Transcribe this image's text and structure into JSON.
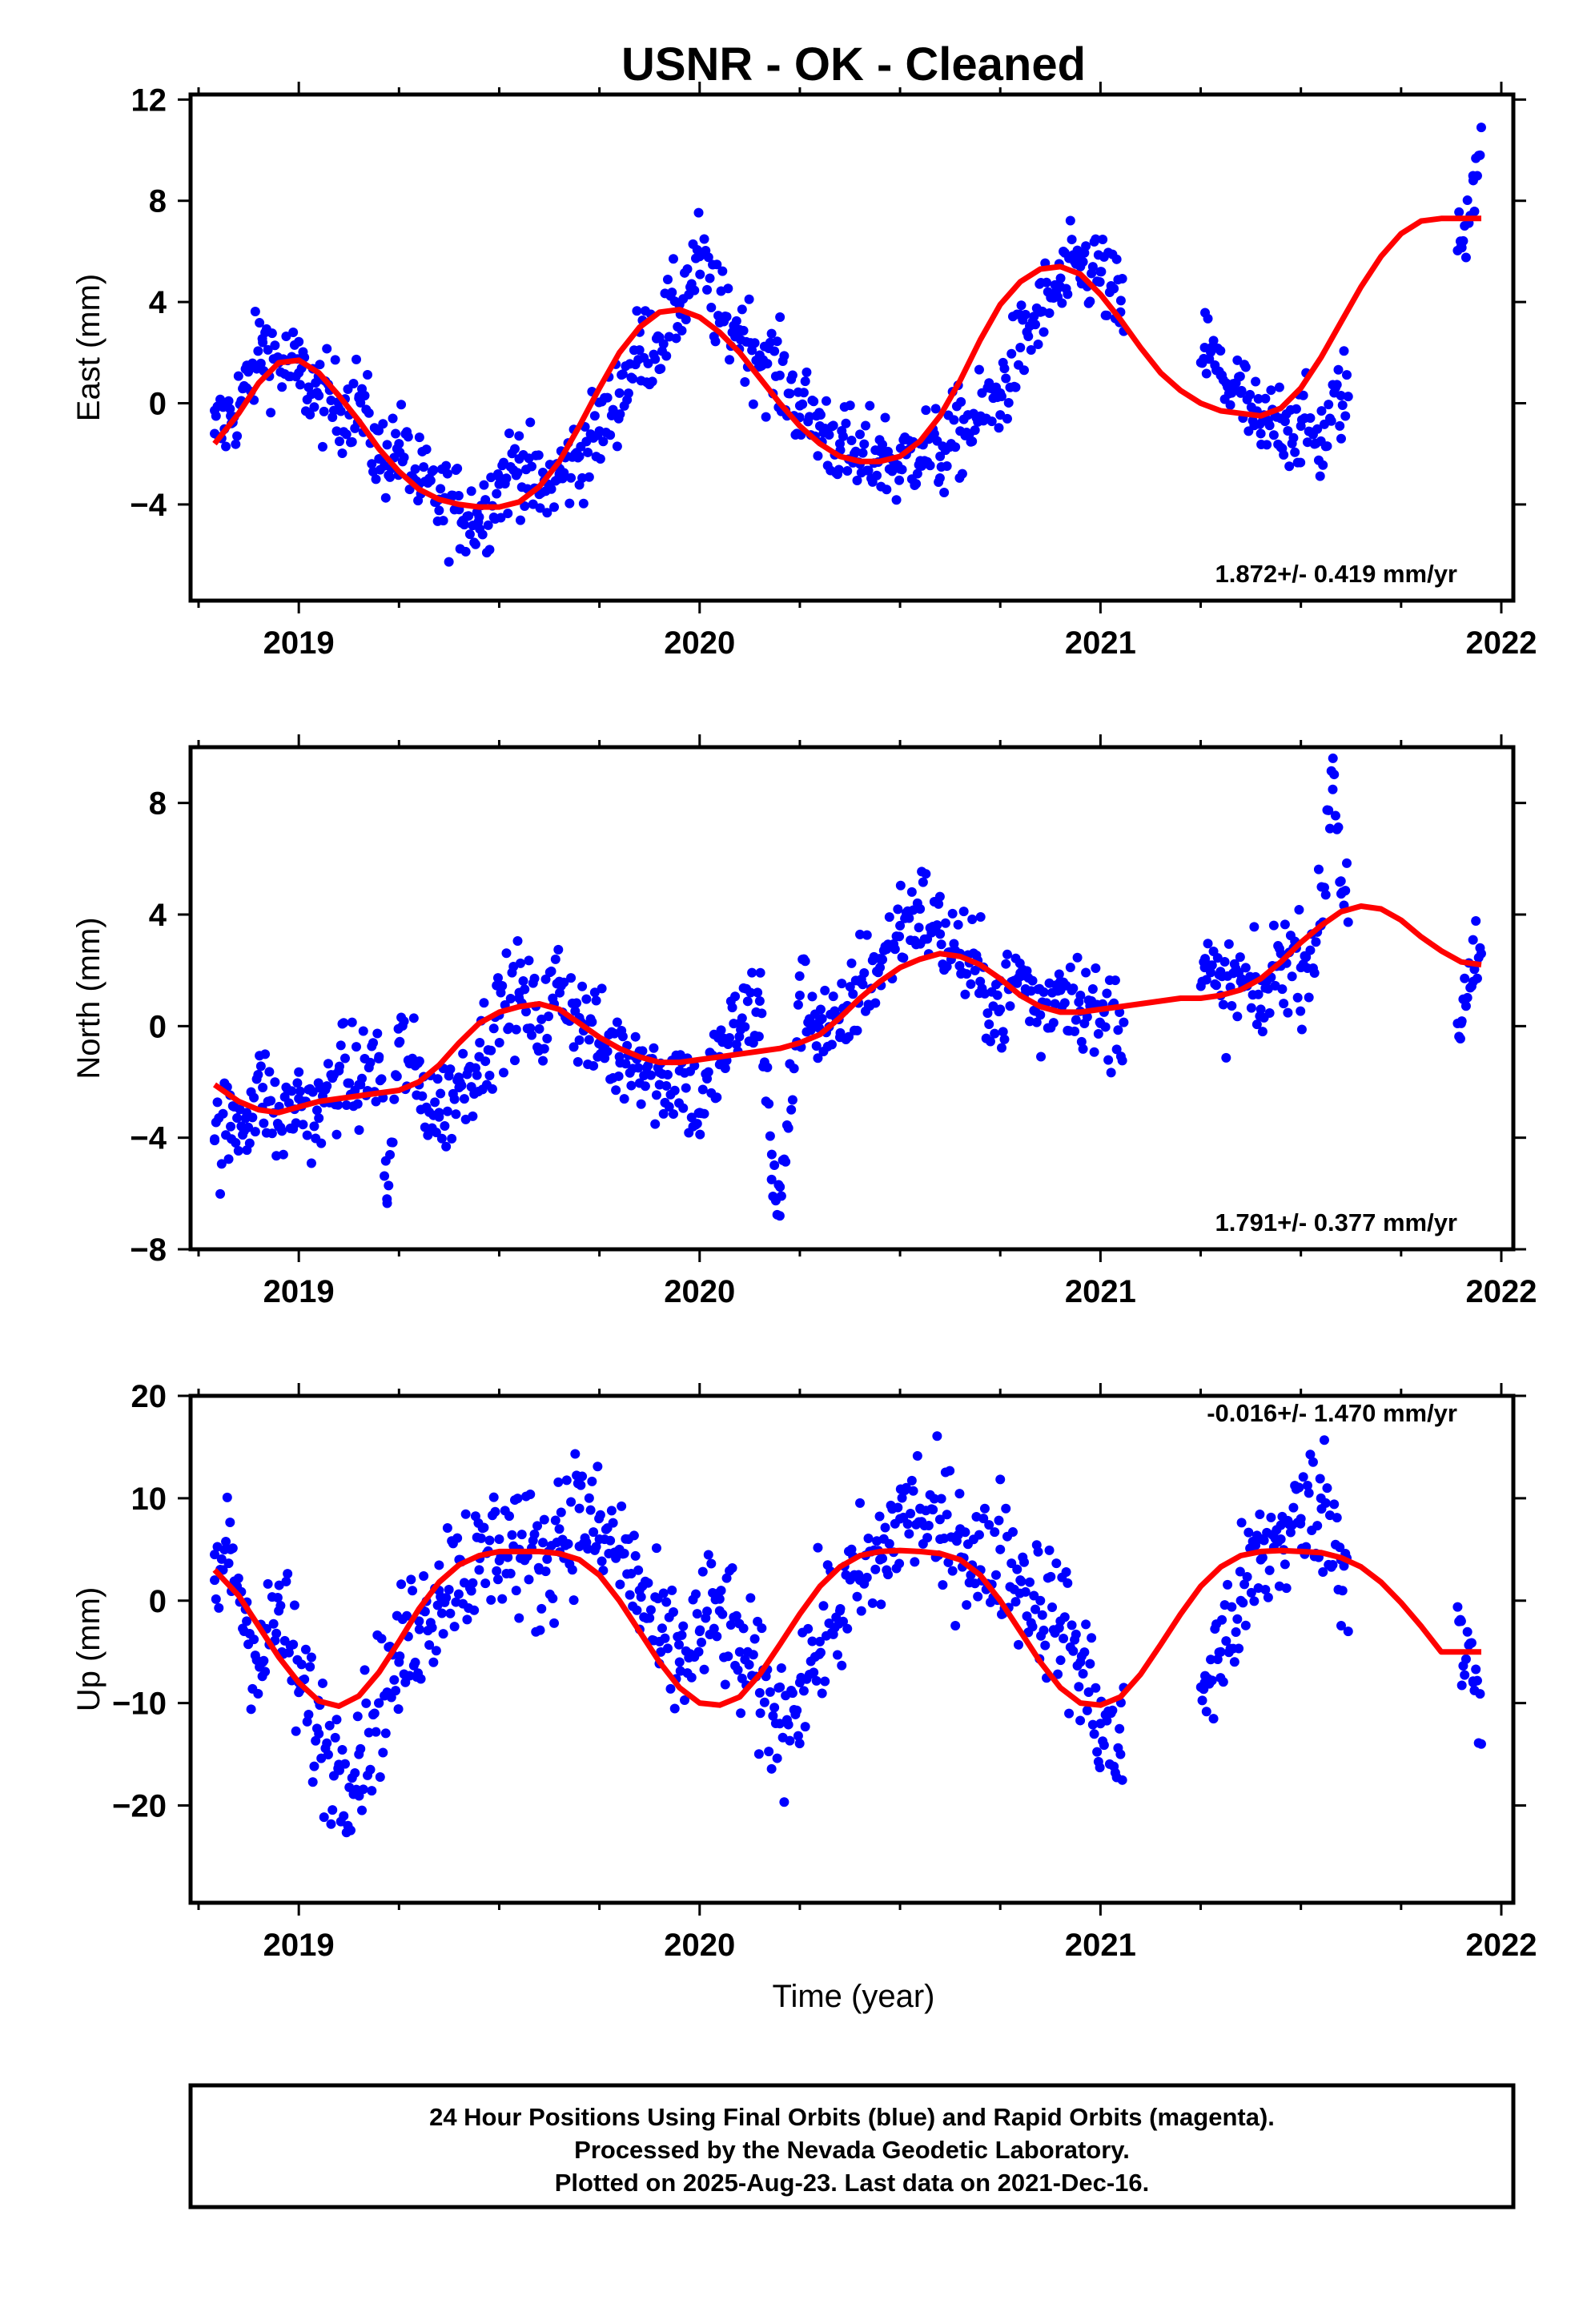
{
  "title": "USNR  - OK - Cleaned",
  "xlabel": "Time (year)",
  "colors": {
    "final_orbits": "#0000ff",
    "model_fit": "#ff0000",
    "axes": "#000000"
  },
  "footer": {
    "line1": "24 Hour Positions Using Final Orbits (blue) and Rapid Orbits (magenta).",
    "line2": "Processed by the Nevada Geodetic Laboratory.",
    "line3": "Plotted on 2025-Aug-23. Last data on 2021-Dec-16."
  },
  "chart_data": [
    {
      "type": "scatter",
      "ylabel": "East (mm)",
      "rate": "1.872+/- 0.419 mm/yr",
      "xlim": [
        2018.73,
        2022.03
      ],
      "ylim": [
        -7.8,
        12.2
      ],
      "x_ticks": [
        "2019",
        "2020",
        "2021",
        "2022"
      ],
      "y_ticks": [
        "−4",
        "0",
        "4",
        "8",
        "12"
      ],
      "series": [
        {
          "marker": "dots",
          "x": [
            2018.79,
            2018.83,
            2018.87,
            2018.91,
            2018.95,
            2019.0,
            2019.05,
            2019.1,
            2019.15,
            2019.2,
            2019.25,
            2019.3,
            2019.35,
            2019.4,
            2019.45,
            2019.5,
            2019.55,
            2019.6,
            2019.65,
            2019.7,
            2019.75,
            2019.8,
            2019.85,
            2019.9,
            2019.95,
            2020.0,
            2020.05,
            2020.1,
            2020.15,
            2020.2,
            2020.25,
            2020.3,
            2020.35,
            2020.4,
            2020.45,
            2020.5,
            2020.55,
            2020.6,
            2020.65,
            2020.7,
            2020.75,
            2020.8,
            2020.85,
            2020.9,
            2020.95,
            2021.0,
            2021.05,
            2021.26,
            2021.3,
            2021.35,
            2021.4,
            2021.45,
            2021.5,
            2021.55,
            2021.6,
            2021.9,
            2021.93,
            2021.95
          ],
          "y": [
            -1.2,
            -0.5,
            0.6,
            2.4,
            1.6,
            1.2,
            0.3,
            -0.2,
            0.2,
            -2.2,
            -1.6,
            -3.2,
            -3.8,
            -4.2,
            -4.5,
            -3.2,
            -2.2,
            -3.6,
            -2.8,
            -2.1,
            -1.1,
            0.4,
            2.1,
            2.6,
            3.9,
            5.8,
            3.4,
            2.9,
            1.9,
            1.1,
            -0.1,
            -0.9,
            -1.6,
            -2.4,
            -1.9,
            -2.6,
            -1.6,
            -2.1,
            -1.1,
            -0.6,
            0.4,
            2.2,
            3.6,
            4.6,
            5.4,
            5.2,
            3.6,
            2.2,
            1.1,
            0.4,
            -1.2,
            -0.6,
            -0.9,
            -1.5,
            0.3,
            6.2,
            8.8,
            10.9
          ]
        },
        {
          "marker": "line",
          "x": [
            2018.79,
            2018.85,
            2018.9,
            2018.95,
            2019.0,
            2019.05,
            2019.1,
            2019.15,
            2019.2,
            2019.25,
            2019.3,
            2019.35,
            2019.4,
            2019.45,
            2019.5,
            2019.55,
            2019.6,
            2019.65,
            2019.7,
            2019.75,
            2019.8,
            2019.85,
            2019.9,
            2019.95,
            2020.0,
            2020.05,
            2020.1,
            2020.15,
            2020.2,
            2020.25,
            2020.3,
            2020.35,
            2020.4,
            2020.45,
            2020.5,
            2020.55,
            2020.6,
            2020.65,
            2020.7,
            2020.75,
            2020.8,
            2020.85,
            2020.9,
            2020.95,
            2021.0,
            2021.05,
            2021.1,
            2021.15,
            2021.2,
            2021.25,
            2021.3,
            2021.35,
            2021.4,
            2021.45,
            2021.5,
            2021.55,
            2021.6,
            2021.65,
            2021.7,
            2021.75,
            2021.8,
            2021.85,
            2021.9,
            2021.95
          ],
          "y": [
            -1.6,
            -0.4,
            0.8,
            1.6,
            1.7,
            1.2,
            0.3,
            -0.7,
            -1.8,
            -2.7,
            -3.4,
            -3.8,
            -4.0,
            -4.1,
            -4.1,
            -3.9,
            -3.3,
            -2.3,
            -0.9,
            0.6,
            2.0,
            3.0,
            3.6,
            3.7,
            3.4,
            2.8,
            2.0,
            1.0,
            0.0,
            -0.9,
            -1.6,
            -2.1,
            -2.3,
            -2.3,
            -2.1,
            -1.5,
            -0.5,
            0.9,
            2.5,
            3.9,
            4.8,
            5.3,
            5.4,
            5.1,
            4.3,
            3.3,
            2.2,
            1.2,
            0.5,
            0.0,
            -0.3,
            -0.4,
            -0.5,
            -0.2,
            0.6,
            1.8,
            3.2,
            4.6,
            5.8,
            6.7,
            7.2,
            7.3,
            7.3,
            7.3
          ]
        }
      ]
    },
    {
      "type": "scatter",
      "ylabel": "North (mm)",
      "rate": "1.791+/- 0.377 mm/yr",
      "xlim": [
        2018.73,
        2022.03
      ],
      "ylim": [
        -8.0,
        10.0
      ],
      "x_ticks": [
        "2019",
        "2020",
        "2021",
        "2022"
      ],
      "y_ticks": [
        "−8",
        "−4",
        "0",
        "4",
        "8"
      ],
      "series": [
        {
          "marker": "dots",
          "x": [
            2018.79,
            2018.83,
            2018.87,
            2018.91,
            2018.95,
            2019.0,
            2019.05,
            2019.1,
            2019.15,
            2019.2,
            2019.22,
            2019.25,
            2019.3,
            2019.35,
            2019.4,
            2019.45,
            2019.5,
            2019.55,
            2019.6,
            2019.65,
            2019.7,
            2019.75,
            2019.8,
            2019.85,
            2019.9,
            2019.95,
            2020.0,
            2020.05,
            2020.1,
            2020.15,
            2020.18,
            2020.2,
            2020.25,
            2020.3,
            2020.35,
            2020.4,
            2020.45,
            2020.5,
            2020.55,
            2020.6,
            2020.65,
            2020.7,
            2020.75,
            2020.8,
            2020.85,
            2020.9,
            2020.95,
            2021.0,
            2021.26,
            2021.3,
            2021.35,
            2021.4,
            2021.45,
            2021.5,
            2021.55,
            2021.58,
            2021.6,
            2021.9,
            2021.93,
            2021.95
          ],
          "y": [
            -4.1,
            -3.6,
            -3.1,
            -2.2,
            -3.6,
            -2.6,
            -3.3,
            -1.6,
            -2.1,
            -1.1,
            -6.2,
            -0.6,
            -2.1,
            -3.1,
            -2.2,
            -1.1,
            0.4,
            1.2,
            -0.1,
            1.6,
            0.3,
            -0.6,
            -1.1,
            -0.9,
            -2.1,
            -1.6,
            -3.1,
            -1.1,
            0.1,
            0.9,
            -4.6,
            -6.8,
            1.1,
            0.2,
            -0.4,
            1.6,
            2.1,
            3.6,
            4.2,
            3.3,
            2.6,
            1.6,
            0.6,
            1.9,
            0.4,
            1.6,
            1.1,
            0.1,
            2.1,
            1.1,
            1.6,
            0.6,
            2.6,
            2.1,
            3.6,
            9.6,
            5.2,
            0.1,
            1.6,
            2.6
          ]
        },
        {
          "marker": "line",
          "x": [
            2018.79,
            2018.85,
            2018.9,
            2018.95,
            2019.0,
            2019.05,
            2019.1,
            2019.15,
            2019.2,
            2019.25,
            2019.3,
            2019.35,
            2019.4,
            2019.45,
            2019.5,
            2019.55,
            2019.6,
            2019.65,
            2019.7,
            2019.75,
            2019.8,
            2019.85,
            2019.9,
            2019.95,
            2020.0,
            2020.05,
            2020.1,
            2020.15,
            2020.2,
            2020.25,
            2020.3,
            2020.35,
            2020.4,
            2020.45,
            2020.5,
            2020.55,
            2020.6,
            2020.65,
            2020.7,
            2020.75,
            2020.8,
            2020.85,
            2020.9,
            2020.95,
            2021.0,
            2021.05,
            2021.1,
            2021.15,
            2021.2,
            2021.25,
            2021.3,
            2021.35,
            2021.4,
            2021.45,
            2021.5,
            2021.55,
            2021.6,
            2021.65,
            2021.7,
            2021.75,
            2021.8,
            2021.85,
            2021.9,
            2021.95
          ],
          "y": [
            -2.1,
            -2.7,
            -3.0,
            -3.1,
            -2.9,
            -2.7,
            -2.6,
            -2.5,
            -2.4,
            -2.3,
            -2.0,
            -1.4,
            -0.6,
            0.1,
            0.5,
            0.7,
            0.8,
            0.6,
            0.1,
            -0.4,
            -0.8,
            -1.1,
            -1.3,
            -1.3,
            -1.2,
            -1.1,
            -1.0,
            -0.9,
            -0.8,
            -0.6,
            -0.3,
            0.3,
            1.0,
            1.6,
            2.1,
            2.4,
            2.6,
            2.5,
            2.2,
            1.7,
            1.1,
            0.7,
            0.5,
            0.5,
            0.6,
            0.7,
            0.8,
            0.9,
            1.0,
            1.0,
            1.1,
            1.3,
            1.7,
            2.3,
            3.0,
            3.6,
            4.1,
            4.3,
            4.2,
            3.8,
            3.2,
            2.7,
            2.3,
            2.2
          ]
        }
      ]
    },
    {
      "type": "scatter",
      "ylabel": "Up (mm)",
      "rate": "-0.016+/- 1.470 mm/yr",
      "xlim": [
        2018.73,
        2022.03
      ],
      "ylim": [
        -29.5,
        20.0
      ],
      "x_ticks": [
        "2019",
        "2020",
        "2021",
        "2022"
      ],
      "y_ticks": [
        "−20",
        "−10",
        "0",
        "10",
        "20"
      ],
      "series": [
        {
          "marker": "dots",
          "x": [
            2018.79,
            2018.83,
            2018.87,
            2018.91,
            2018.95,
            2019.0,
            2019.05,
            2019.1,
            2019.15,
            2019.2,
            2019.25,
            2019.3,
            2019.35,
            2019.4,
            2019.45,
            2019.5,
            2019.55,
            2019.6,
            2019.65,
            2019.7,
            2019.75,
            2019.8,
            2019.85,
            2019.9,
            2019.95,
            2020.0,
            2020.05,
            2020.1,
            2020.15,
            2020.2,
            2020.25,
            2020.3,
            2020.35,
            2020.4,
            2020.45,
            2020.5,
            2020.55,
            2020.6,
            2020.65,
            2020.7,
            2020.75,
            2020.8,
            2020.85,
            2020.9,
            2020.95,
            2021.0,
            2021.05,
            2021.26,
            2021.3,
            2021.35,
            2021.4,
            2021.45,
            2021.5,
            2021.55,
            2021.6,
            2021.9,
            2021.93,
            2021.95
          ],
          "y": [
            2.0,
            5.0,
            -2.0,
            -6.0,
            -1.0,
            -8.0,
            -13.0,
            -16.0,
            -15.0,
            -10.0,
            -6.0,
            -2.0,
            1.0,
            4.0,
            3.0,
            6.0,
            5.0,
            3.0,
            7.0,
            9.0,
            6.0,
            5.0,
            1.0,
            -4.0,
            -6.0,
            -3.0,
            -1.0,
            -5.0,
            -9.0,
            -12.0,
            -8.0,
            -4.0,
            -1.0,
            2.0,
            4.0,
            8.0,
            9.0,
            6.0,
            7.0,
            3.0,
            5.0,
            2.0,
            0.0,
            -2.0,
            -6.0,
            -12.0,
            -15.0,
            -8.0,
            -5.0,
            0.0,
            4.0,
            6.0,
            8.0,
            10.0,
            4.0,
            -2.0,
            -8.0,
            -14.0
          ]
        },
        {
          "marker": "line",
          "x": [
            2018.79,
            2018.85,
            2018.9,
            2018.95,
            2019.0,
            2019.05,
            2019.1,
            2019.15,
            2019.2,
            2019.25,
            2019.3,
            2019.35,
            2019.4,
            2019.45,
            2019.5,
            2019.55,
            2019.6,
            2019.65,
            2019.7,
            2019.75,
            2019.8,
            2019.85,
            2019.9,
            2019.95,
            2020.0,
            2020.05,
            2020.1,
            2020.15,
            2020.2,
            2020.25,
            2020.3,
            2020.35,
            2020.4,
            2020.45,
            2020.5,
            2020.55,
            2020.6,
            2020.65,
            2020.7,
            2020.75,
            2020.8,
            2020.85,
            2020.9,
            2020.95,
            2021.0,
            2021.05,
            2021.1,
            2021.15,
            2021.2,
            2021.25,
            2021.3,
            2021.35,
            2021.4,
            2021.45,
            2021.5,
            2021.55,
            2021.6,
            2021.65,
            2021.7,
            2021.75,
            2021.8,
            2021.85,
            2021.9,
            2021.95
          ],
          "y": [
            3.0,
            0.5,
            -2.5,
            -5.5,
            -8.0,
            -9.8,
            -10.3,
            -9.3,
            -7.0,
            -4.0,
            -0.8,
            1.8,
            3.5,
            4.4,
            4.8,
            4.8,
            4.8,
            4.6,
            4.0,
            2.5,
            0.0,
            -3.0,
            -6.0,
            -8.5,
            -10.0,
            -10.2,
            -9.4,
            -7.2,
            -4.3,
            -1.3,
            1.4,
            3.3,
            4.4,
            4.8,
            4.9,
            4.8,
            4.6,
            4.0,
            2.5,
            0.0,
            -3.0,
            -6.0,
            -8.5,
            -10.0,
            -10.2,
            -9.4,
            -7.2,
            -4.3,
            -1.3,
            1.4,
            3.3,
            4.4,
            4.8,
            4.9,
            4.8,
            4.7,
            4.2,
            3.3,
            1.8,
            -0.2,
            -2.5,
            -5.0,
            -5.0,
            -5.0
          ]
        }
      ]
    }
  ]
}
